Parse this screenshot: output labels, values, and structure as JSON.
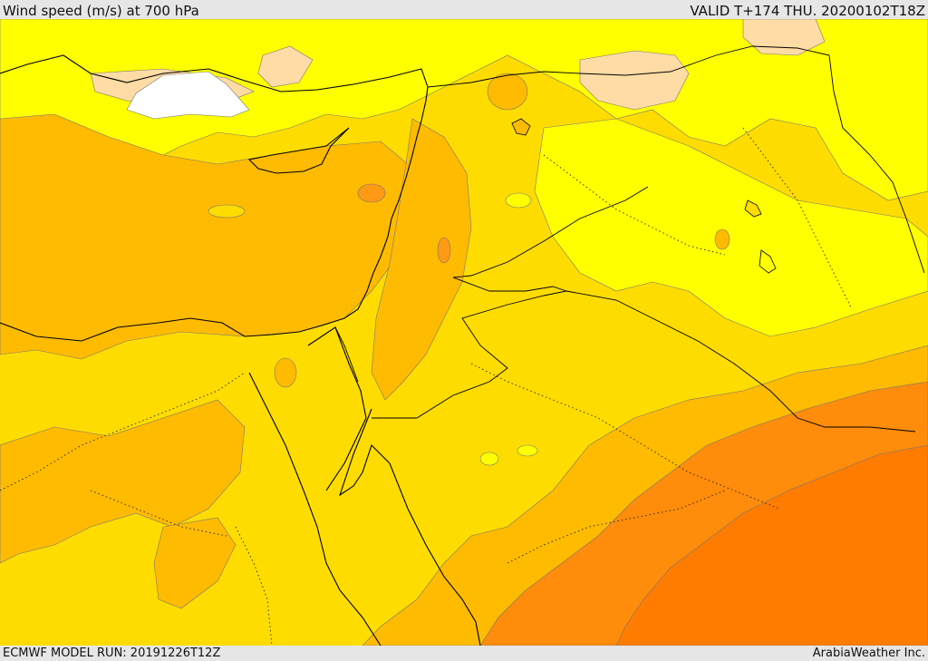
{
  "header": {
    "title": "Wind speed (m/s) at 700 hPa",
    "valid": "VALID T+174 THU. 20200102T18Z"
  },
  "footer": {
    "model_run": "ECMWF MODEL RUN: 20191226T12Z",
    "credit": "ArabiaWeather Inc."
  },
  "colors": {
    "white": "#ffffff",
    "pale": "#ffdca5",
    "yellow": "#ffff00",
    "gold": "#ffdc00",
    "amber": "#ffbb00",
    "orange_light": "#ffaa1e",
    "orange": "#ff8c0a",
    "orange_dark": "#ff7c00"
  }
}
